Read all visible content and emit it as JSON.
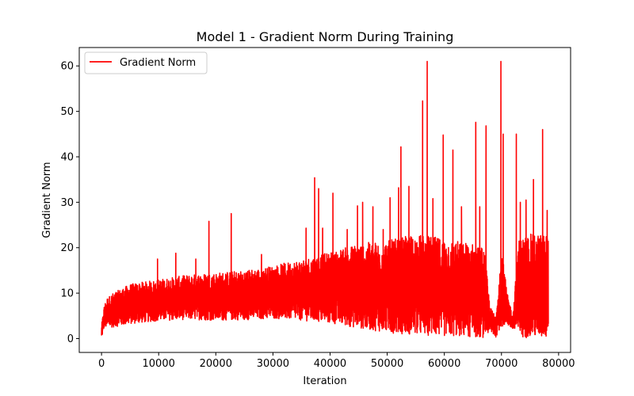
{
  "chart_data": {
    "type": "line",
    "title": "Model 1 - Gradient Norm During Training",
    "xlabel": "Iteration",
    "ylabel": "Gradient Norm",
    "xlim": [
      -3900,
      82100
    ],
    "ylim": [
      -3.05,
      64.05
    ],
    "xticks": [
      0,
      10000,
      20000,
      30000,
      40000,
      50000,
      60000,
      70000,
      80000
    ],
    "yticks": [
      0,
      10,
      20,
      30,
      40,
      50,
      60
    ],
    "grid": false,
    "legend": {
      "placement": "top-left",
      "entries": [
        "Gradient Norm"
      ]
    },
    "series": [
      {
        "name": "Gradient Norm",
        "color": "#ff0000",
        "x_range": [
          0,
          78200
        ],
        "envelope": {
          "x": [
            0,
            500,
            1000,
            2000,
            5000,
            10000,
            15000,
            20000,
            25000,
            30000,
            35000,
            40000,
            45000,
            50000,
            55000,
            60000,
            65000,
            67000,
            68000,
            69000,
            70000,
            71000,
            72000,
            73000,
            75000,
            78000
          ],
          "low": [
            0,
            2.5,
            2.4,
            2.5,
            3.2,
            3.9,
            4.2,
            4.0,
            4.1,
            4.4,
            4.0,
            3.3,
            2.3,
            1.3,
            0.8,
            0.5,
            0.3,
            0.2,
            1.5,
            0.3,
            2.5,
            3.0,
            2.0,
            0.2,
            0.2,
            0.1
          ],
          "high": [
            3.0,
            7.5,
            9.0,
            10.0,
            12.0,
            13.0,
            14.0,
            14.5,
            15.0,
            16.0,
            17.5,
            19.0,
            21.0,
            21.5,
            23.0,
            22.0,
            21.0,
            20.0,
            7.0,
            5.0,
            20.0,
            10.0,
            5.0,
            22.0,
            23.0,
            23.0
          ]
        },
        "spikes": [
          {
            "x": 9800,
            "y": 17.5
          },
          {
            "x": 13000,
            "y": 18.8
          },
          {
            "x": 16500,
            "y": 17.5
          },
          {
            "x": 18800,
            "y": 25.8
          },
          {
            "x": 22700,
            "y": 27.5
          },
          {
            "x": 28000,
            "y": 18.5
          },
          {
            "x": 35800,
            "y": 24.3
          },
          {
            "x": 37300,
            "y": 35.4
          },
          {
            "x": 38000,
            "y": 33.0
          },
          {
            "x": 38700,
            "y": 24.3
          },
          {
            "x": 40500,
            "y": 32.0
          },
          {
            "x": 43000,
            "y": 24.0
          },
          {
            "x": 44800,
            "y": 29.2
          },
          {
            "x": 45700,
            "y": 30.0
          },
          {
            "x": 47500,
            "y": 29.0
          },
          {
            "x": 49300,
            "y": 24.0
          },
          {
            "x": 50500,
            "y": 31.0
          },
          {
            "x": 52000,
            "y": 33.2
          },
          {
            "x": 52400,
            "y": 42.2
          },
          {
            "x": 53800,
            "y": 33.5
          },
          {
            "x": 56200,
            "y": 52.3
          },
          {
            "x": 57000,
            "y": 61.0
          },
          {
            "x": 58000,
            "y": 30.8
          },
          {
            "x": 59800,
            "y": 44.8
          },
          {
            "x": 61500,
            "y": 41.5
          },
          {
            "x": 63000,
            "y": 29.0
          },
          {
            "x": 65500,
            "y": 47.6
          },
          {
            "x": 66200,
            "y": 29.0
          },
          {
            "x": 67300,
            "y": 46.8
          },
          {
            "x": 69900,
            "y": 61.0
          },
          {
            "x": 70300,
            "y": 45.0
          },
          {
            "x": 72600,
            "y": 45.0
          },
          {
            "x": 73300,
            "y": 30.0
          },
          {
            "x": 74300,
            "y": 30.5
          },
          {
            "x": 75600,
            "y": 35.0
          },
          {
            "x": 77200,
            "y": 46.0
          },
          {
            "x": 78000,
            "y": 28.2
          }
        ]
      }
    ]
  }
}
